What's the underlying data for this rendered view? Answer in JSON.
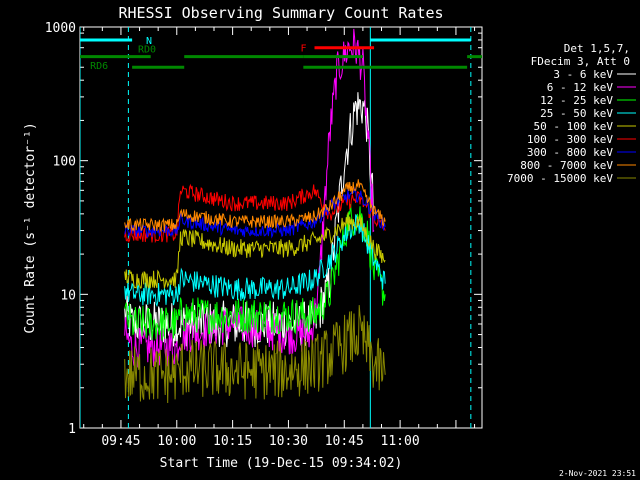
{
  "chart_data": {
    "type": "line",
    "title": "RHESSI Observing Summary Count Rates",
    "xlabel": "Start Time (19-Dec-15 09:34:02)",
    "ylabel": "Count Rate (s⁻¹ detector⁻¹)",
    "yscale": "log",
    "ylim": [
      1,
      1000
    ],
    "xlim": [
      "09:34",
      "11:22"
    ],
    "x_ticks": [
      "09:45",
      "10:00",
      "10:15",
      "10:30",
      "10:45",
      "11:00"
    ],
    "y_ticks": [
      "1",
      "10",
      "100",
      "1000"
    ],
    "legend": {
      "placement": "right",
      "header": [
        "Det 1,5,7,",
        "FDecim 3, Att 0"
      ]
    },
    "series": [
      {
        "name": "3 - 6 keV",
        "color": "#ffffff",
        "x": [
          "09:46",
          "09:48",
          "10:00",
          "10:01",
          "10:15",
          "10:30",
          "10:37",
          "10:41",
          "10:45",
          "10:48",
          "10:50",
          "10:51",
          "10:53"
        ],
        "y": [
          7,
          6,
          6,
          6,
          6,
          6,
          6,
          12,
          100,
          250,
          260,
          200,
          40
        ]
      },
      {
        "name": "6 - 12 keV",
        "color": "#ff00ff",
        "x": [
          "09:46",
          "09:48",
          "10:00",
          "10:01",
          "10:15",
          "10:30",
          "10:36",
          "10:38",
          "10:41",
          "10:43",
          "10:46",
          "10:48",
          "10:50",
          "10:52",
          "10:53"
        ],
        "y": [
          5,
          4,
          4,
          5,
          6,
          5,
          5,
          10,
          150,
          450,
          700,
          720,
          500,
          80,
          30
        ]
      },
      {
        "name": "12 - 25 keV",
        "color": "#00ff00",
        "x": [
          "09:46",
          "09:48",
          "10:00",
          "10:01",
          "10:15",
          "10:30",
          "10:37",
          "10:41",
          "10:46",
          "10:49",
          "10:51",
          "10:53",
          "10:56"
        ],
        "y": [
          7,
          6,
          6,
          7,
          7,
          7,
          7,
          10,
          35,
          40,
          30,
          15,
          10
        ]
      },
      {
        "name": "25 - 50 keV",
        "color": "#00ffff",
        "x": [
          "09:46",
          "09:48",
          "10:00",
          "10:01",
          "10:15",
          "10:30",
          "10:37",
          "10:41",
          "10:46",
          "10:49",
          "10:51",
          "10:53",
          "10:56"
        ],
        "y": [
          11,
          10,
          10,
          13,
          11,
          11,
          13,
          18,
          30,
          35,
          25,
          18,
          12
        ]
      },
      {
        "name": "50 - 100 keV",
        "color": "#c8c800",
        "x": [
          "09:46",
          "09:48",
          "10:00",
          "10:01",
          "10:15",
          "10:30",
          "10:37",
          "10:41",
          "10:46",
          "10:49",
          "10:51",
          "10:53",
          "10:56"
        ],
        "y": [
          14,
          13,
          13,
          27,
          22,
          22,
          25,
          28,
          35,
          35,
          28,
          22,
          18
        ]
      },
      {
        "name": "100 - 300 keV",
        "color": "#ff0000",
        "x": [
          "09:46",
          "09:48",
          "10:00",
          "10:01",
          "10:15",
          "10:30",
          "10:37",
          "10:41",
          "10:46",
          "10:49",
          "10:51",
          "10:53",
          "10:56"
        ],
        "y": [
          28,
          28,
          28,
          60,
          48,
          48,
          60,
          40,
          50,
          52,
          45,
          38,
          30
        ]
      },
      {
        "name": "300 - 800 keV",
        "color": "#0000ff",
        "x": [
          "09:46",
          "09:48",
          "10:00",
          "10:01",
          "10:15",
          "10:30",
          "10:37",
          "10:41",
          "10:46",
          "10:49",
          "10:51",
          "10:53",
          "10:56"
        ],
        "y": [
          30,
          30,
          30,
          36,
          30,
          30,
          35,
          45,
          55,
          55,
          48,
          40,
          32
        ]
      },
      {
        "name": "800 - 7000 keV",
        "color": "#ff8800",
        "x": [
          "09:46",
          "09:48",
          "10:00",
          "10:01",
          "10:15",
          "10:30",
          "10:37",
          "10:41",
          "10:46",
          "10:49",
          "10:51",
          "10:53",
          "10:56"
        ],
        "y": [
          34,
          33,
          33,
          40,
          35,
          35,
          38,
          45,
          62,
          65,
          52,
          42,
          35
        ]
      },
      {
        "name": "7000 - 15000 keV",
        "color": "#888800",
        "x": [
          "09:46",
          "09:48",
          "10:00",
          "10:01",
          "10:15",
          "10:30",
          "10:37",
          "10:41",
          "10:46",
          "10:49",
          "10:51",
          "10:53",
          "10:56"
        ],
        "y": [
          2.5,
          2.5,
          2.5,
          2.8,
          2.7,
          2.7,
          3,
          3.5,
          4.5,
          5,
          4,
          3,
          2.5
        ]
      }
    ],
    "annotations": [
      {
        "label": "N",
        "color": "#00ffff",
        "segments": [
          [
            "09:34",
            "09:48"
          ],
          [
            "10:52",
            "11:19"
          ]
        ],
        "level": 800
      },
      {
        "label": "RD0",
        "color": "#008800",
        "segments": [
          [
            "09:34",
            "09:53"
          ],
          [
            "10:02",
            "10:34"
          ],
          [
            "10:34",
            "10:50"
          ],
          [
            "11:18",
            "11:22"
          ]
        ],
        "level": 600
      },
      {
        "label": "RD6",
        "color": "#008800",
        "segments": [
          [
            "09:48",
            "10:02"
          ],
          [
            "10:34",
            "10:50"
          ],
          [
            "10:50",
            "11:18"
          ]
        ],
        "level": 500
      },
      {
        "label": "F",
        "color": "#ff0000",
        "segments": [
          [
            "10:37",
            "10:53"
          ]
        ],
        "level": 700
      }
    ],
    "vertical_markers": [
      {
        "x": "09:34",
        "color": "#00ffff",
        "style": "solid"
      },
      {
        "x": "09:47",
        "color": "#00ffff",
        "style": "dashed"
      },
      {
        "x": "10:52",
        "color": "#00ffff",
        "style": "solid"
      },
      {
        "x": "11:19",
        "color": "#00ffff",
        "style": "dashed"
      }
    ]
  },
  "footer": {
    "timestamp": "2-Nov-2021 23:51"
  }
}
